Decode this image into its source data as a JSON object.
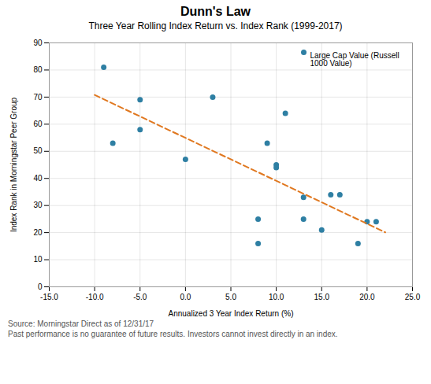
{
  "chart_data": {
    "type": "scatter",
    "title": "Dunn's Law",
    "subtitle": "Three Year Rolling Index Return vs. Index Rank (1999-2017)",
    "x_label": "Annualized 3 Year Index Return (%)",
    "y_label": "Index Rank in Morningstar Peer Group",
    "series": [
      {
        "name": "Large Cap Value (Russell\n1000 Value)",
        "type": "scatter",
        "marker": "circle",
        "color": "#2e7fa3",
        "x": [
          -9,
          -8,
          -5,
          -5,
          0,
          3,
          8,
          8,
          9,
          10,
          10,
          11,
          13,
          13,
          15,
          16,
          17,
          19,
          20,
          21
        ],
        "values": [
          81,
          53,
          69,
          58,
          47,
          70,
          25,
          16,
          53,
          45,
          44,
          64,
          33,
          25,
          21,
          34,
          34,
          16,
          24,
          24
        ]
      },
      {
        "type": "line",
        "line_style": "dashed",
        "color": "#e07820",
        "x": [
          -10,
          22
        ],
        "values": [
          70.7821,
          20.103
        ]
      }
    ],
    "xlim": [
      -15,
      25
    ],
    "ylim": [
      0,
      90
    ],
    "xticks": [
      {
        "value": -15,
        "label": "-15.0"
      },
      {
        "value": -10,
        "label": "-10.0"
      },
      {
        "value": -5,
        "label": "-5.0"
      },
      {
        "value": 0,
        "label": "0.0"
      },
      {
        "value": 5,
        "label": "5.0"
      },
      {
        "value": 10,
        "label": "10.0"
      },
      {
        "value": 15,
        "label": "15.0"
      },
      {
        "value": 20,
        "label": "20.0"
      },
      {
        "value": 25,
        "label": "25.0"
      }
    ],
    "yticks": [
      0,
      10,
      20,
      30,
      40,
      50,
      60,
      70,
      80,
      90
    ],
    "grid": true,
    "legend": "upper right",
    "annotations": [
      "Source: Morningstar Direct as of 12/31/17",
      "Past performance is no guarantee of future results. Investors cannot invest directly in an index."
    ]
  }
}
